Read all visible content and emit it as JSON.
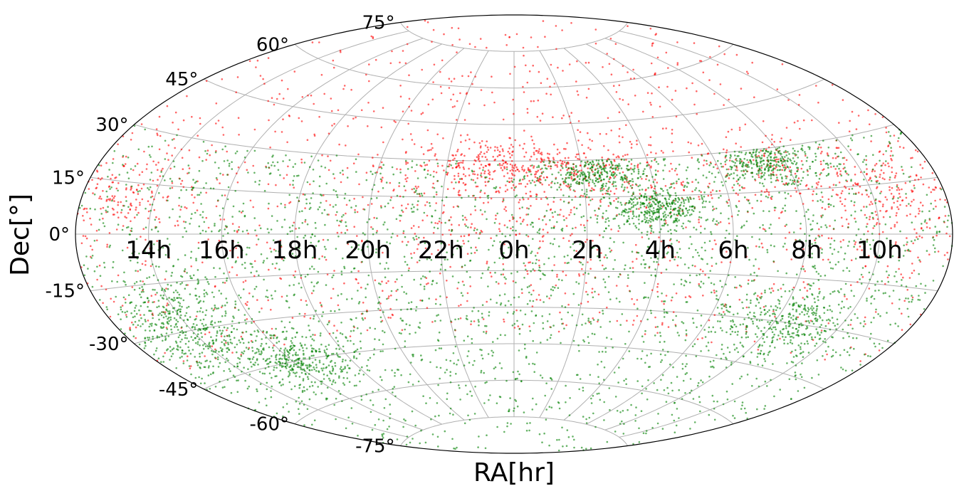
{
  "chart_data": {
    "type": "scatter",
    "projection": "aitoff",
    "xlabel": "RA[hr]",
    "ylabel": "Dec[°]",
    "grid": true,
    "ra_tick_labels": [
      "14h",
      "16h",
      "18h",
      "20h",
      "22h",
      "0h",
      "2h",
      "4h",
      "6h",
      "8h",
      "10h"
    ],
    "ra_tick_values_hr": [
      14,
      16,
      18,
      20,
      22,
      0,
      2,
      4,
      6,
      8,
      10
    ],
    "dec_tick_labels": [
      "75°",
      "60°",
      "45°",
      "30°",
      "15°",
      "0°",
      "-15°",
      "-30°",
      "-45°",
      "-60°",
      "-75°"
    ],
    "dec_tick_values_deg": [
      75,
      60,
      45,
      30,
      15,
      0,
      -15,
      -30,
      -45,
      -60,
      -75
    ],
    "ra_center_hr": 0,
    "dec_range": [
      -90,
      90
    ],
    "series": [
      {
        "color": "#ff0000",
        "dec_range": [
          -40,
          90
        ],
        "approx_count": 7000,
        "clusters": [
          {
            "ra_hr": 1.0,
            "dec": 28,
            "spread_ra": 1.8,
            "spread_dec": 6,
            "weight": 6
          },
          {
            "ra_hr": 23.0,
            "dec": 28,
            "spread_ra": 1.5,
            "spread_dec": 6,
            "weight": 4
          },
          {
            "ra_hr": 13.0,
            "dec": 12,
            "spread_ra": 1.2,
            "spread_dec": 8,
            "weight": 5
          },
          {
            "ra_hr": 10.5,
            "dec": 12,
            "spread_ra": 1.2,
            "spread_dec": 8,
            "weight": 5
          },
          {
            "ra_hr": 7.5,
            "dec": 22,
            "spread_ra": 1.0,
            "spread_dec": 6,
            "weight": 3
          },
          {
            "ra_hr": 2.5,
            "dec": 20,
            "spread_ra": 1.5,
            "spread_dec": 6,
            "weight": 3
          },
          {
            "ra_hr": 23.5,
            "dec": 5,
            "spread_ra": 1.5,
            "spread_dec": 6,
            "weight": 2
          }
        ]
      },
      {
        "color": "#008000",
        "dec_range": [
          -90,
          30
        ],
        "approx_count": 14000,
        "clusters": [
          {
            "ra_hr": 14.0,
            "dec": -28,
            "spread_ra": 1.0,
            "spread_dec": 8,
            "weight": 3
          },
          {
            "ra_hr": 4.0,
            "dec": 10,
            "spread_ra": 0.6,
            "spread_dec": 4,
            "weight": 2
          },
          {
            "ra_hr": 7.5,
            "dec": 25,
            "spread_ra": 0.8,
            "spread_dec": 4,
            "weight": 2
          },
          {
            "ra_hr": 8.5,
            "dec": -30,
            "spread_ra": 1.0,
            "spread_dec": 6,
            "weight": 2
          },
          {
            "ra_hr": 16.5,
            "dec": -45,
            "spread_ra": 1.0,
            "spread_dec": 5,
            "weight": 2
          },
          {
            "ra_hr": 2.5,
            "dec": 25,
            "spread_ra": 0.8,
            "spread_dec": 4,
            "weight": 2
          }
        ]
      }
    ]
  }
}
